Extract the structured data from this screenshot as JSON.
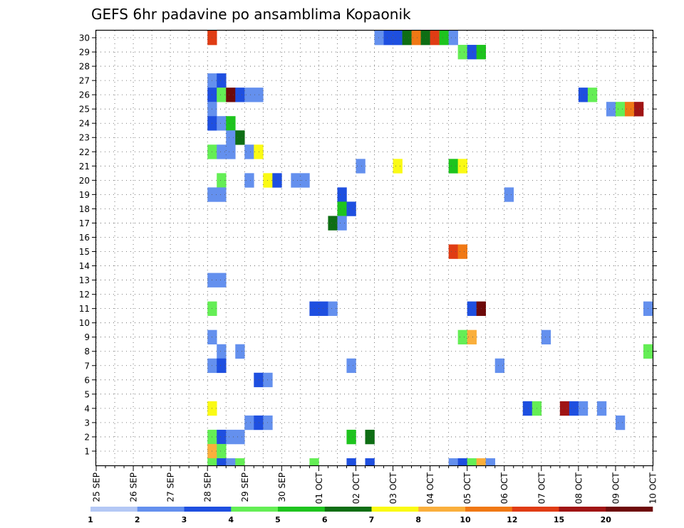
{
  "chart_data": {
    "type": "heatmap",
    "title": "GEFS 6hr padavine po ansamblima Kopaonik",
    "xlabel": "",
    "ylabel": "",
    "x_ticks": [
      "25 SEP",
      "26 SEP",
      "27 SEP",
      "28 SEP",
      "29 SEP",
      "30 SEP",
      "01 OCT",
      "02 OCT",
      "03 OCT",
      "04 OCT",
      "05 OCT",
      "06 OCT",
      "07 OCT",
      "08 OCT",
      "09 OCT",
      "10 OCT"
    ],
    "y_ticks": [
      1,
      2,
      3,
      4,
      5,
      6,
      7,
      8,
      9,
      10,
      11,
      12,
      13,
      14,
      15,
      16,
      17,
      18,
      19,
      20,
      21,
      22,
      23,
      24,
      25,
      26,
      27,
      28,
      29,
      30
    ],
    "ylim": [
      0,
      30
    ],
    "time_steps_per_day": 4,
    "grid": "dotted",
    "legend": "bottom",
    "colorbar": {
      "labels": [
        "1",
        "2",
        "3",
        "4",
        "5",
        "6",
        "7",
        "8",
        "10",
        "12",
        "15",
        "20"
      ],
      "colors": [
        "#b4c8f5",
        "#6490ee",
        "#1e4fe0",
        "#64ee55",
        "#1ec41e",
        "#0e6e14",
        "#fafa14",
        "#faaf3c",
        "#f07814",
        "#e03c14",
        "#a01414",
        "#6e0a0a"
      ]
    },
    "cells": [
      {
        "member": 30,
        "step": 12,
        "level": 9
      },
      {
        "member": 30,
        "step": 30,
        "level": 1
      },
      {
        "member": 30,
        "step": 31,
        "level": 2
      },
      {
        "member": 30,
        "step": 32,
        "level": 2
      },
      {
        "member": 30,
        "step": 33,
        "level": 5
      },
      {
        "member": 30,
        "step": 34,
        "level": 8
      },
      {
        "member": 30,
        "step": 35,
        "level": 5
      },
      {
        "member": 30,
        "step": 36,
        "level": 9
      },
      {
        "member": 30,
        "step": 37,
        "level": 4
      },
      {
        "member": 30,
        "step": 38,
        "level": 1
      },
      {
        "member": 29,
        "step": 39,
        "level": 3
      },
      {
        "member": 29,
        "step": 40,
        "level": 2
      },
      {
        "member": 29,
        "step": 41,
        "level": 4
      },
      {
        "member": 27,
        "step": 12,
        "level": 1
      },
      {
        "member": 27,
        "step": 13,
        "level": 2
      },
      {
        "member": 26,
        "step": 12,
        "level": 2
      },
      {
        "member": 26,
        "step": 13,
        "level": 3
      },
      {
        "member": 26,
        "step": 14,
        "level": 11
      },
      {
        "member": 26,
        "step": 15,
        "level": 2
      },
      {
        "member": 26,
        "step": 16,
        "level": 1
      },
      {
        "member": 26,
        "step": 17,
        "level": 1
      },
      {
        "member": 26,
        "step": 52,
        "level": 2
      },
      {
        "member": 26,
        "step": 53,
        "level": 3
      },
      {
        "member": 25,
        "step": 12,
        "level": 1
      },
      {
        "member": 25,
        "step": 55,
        "level": 1
      },
      {
        "member": 25,
        "step": 56,
        "level": 3
      },
      {
        "member": 25,
        "step": 57,
        "level": 8
      },
      {
        "member": 25,
        "step": 58,
        "level": 10
      },
      {
        "member": 24,
        "step": 12,
        "level": 2
      },
      {
        "member": 24,
        "step": 13,
        "level": 1
      },
      {
        "member": 24,
        "step": 14,
        "level": 4
      },
      {
        "member": 23,
        "step": 14,
        "level": 1
      },
      {
        "member": 23,
        "step": 15,
        "level": 5
      },
      {
        "member": 22,
        "step": 12,
        "level": 3
      },
      {
        "member": 22,
        "step": 13,
        "level": 1
      },
      {
        "member": 22,
        "step": 14,
        "level": 1
      },
      {
        "member": 22,
        "step": 16,
        "level": 1
      },
      {
        "member": 22,
        "step": 17,
        "level": 6
      },
      {
        "member": 21,
        "step": 28,
        "level": 1
      },
      {
        "member": 21,
        "step": 32,
        "level": 6
      },
      {
        "member": 21,
        "step": 38,
        "level": 4
      },
      {
        "member": 21,
        "step": 39,
        "level": 6
      },
      {
        "member": 20,
        "step": 13,
        "level": 3
      },
      {
        "member": 20,
        "step": 16,
        "level": 1
      },
      {
        "member": 20,
        "step": 18,
        "level": 6
      },
      {
        "member": 20,
        "step": 19,
        "level": 2
      },
      {
        "member": 20,
        "step": 21,
        "level": 1
      },
      {
        "member": 20,
        "step": 22,
        "level": 1
      },
      {
        "member": 19,
        "step": 12,
        "level": 1
      },
      {
        "member": 19,
        "step": 13,
        "level": 1
      },
      {
        "member": 19,
        "step": 26,
        "level": 2
      },
      {
        "member": 19,
        "step": 44,
        "level": 1
      },
      {
        "member": 18,
        "step": 26,
        "level": 4
      },
      {
        "member": 18,
        "step": 27,
        "level": 2
      },
      {
        "member": 17,
        "step": 25,
        "level": 5
      },
      {
        "member": 17,
        "step": 26,
        "level": 1
      },
      {
        "member": 15,
        "step": 38,
        "level": 9
      },
      {
        "member": 15,
        "step": 39,
        "level": 8
      },
      {
        "member": 13,
        "step": 12,
        "level": 1
      },
      {
        "member": 13,
        "step": 13,
        "level": 1
      },
      {
        "member": 11,
        "step": 12,
        "level": 3
      },
      {
        "member": 11,
        "step": 23,
        "level": 2
      },
      {
        "member": 11,
        "step": 24,
        "level": 2
      },
      {
        "member": 11,
        "step": 25,
        "level": 1
      },
      {
        "member": 11,
        "step": 40,
        "level": 2
      },
      {
        "member": 11,
        "step": 41,
        "level": 11
      },
      {
        "member": 11,
        "step": 59,
        "level": 1
      },
      {
        "member": 9,
        "step": 12,
        "level": 1
      },
      {
        "member": 9,
        "step": 39,
        "level": 3
      },
      {
        "member": 9,
        "step": 40,
        "level": 7
      },
      {
        "member": 9,
        "step": 48,
        "level": 1
      },
      {
        "member": 8,
        "step": 13,
        "level": 1
      },
      {
        "member": 8,
        "step": 15,
        "level": 1
      },
      {
        "member": 8,
        "step": 59,
        "level": 3
      },
      {
        "member": 7,
        "step": 12,
        "level": 1
      },
      {
        "member": 7,
        "step": 13,
        "level": 2
      },
      {
        "member": 7,
        "step": 27,
        "level": 1
      },
      {
        "member": 7,
        "step": 43,
        "level": 1
      },
      {
        "member": 6,
        "step": 17,
        "level": 2
      },
      {
        "member": 6,
        "step": 18,
        "level": 1
      },
      {
        "member": 4,
        "step": 12,
        "level": 6
      },
      {
        "member": 4,
        "step": 46,
        "level": 2
      },
      {
        "member": 4,
        "step": 47,
        "level": 3
      },
      {
        "member": 4,
        "step": 50,
        "level": 10
      },
      {
        "member": 4,
        "step": 51,
        "level": 2
      },
      {
        "member": 4,
        "step": 52,
        "level": 1
      },
      {
        "member": 4,
        "step": 54,
        "level": 1
      },
      {
        "member": 3,
        "step": 16,
        "level": 1
      },
      {
        "member": 3,
        "step": 17,
        "level": 2
      },
      {
        "member": 3,
        "step": 18,
        "level": 1
      },
      {
        "member": 3,
        "step": 56,
        "level": 1
      },
      {
        "member": 2,
        "step": 12,
        "level": 3
      },
      {
        "member": 2,
        "step": 13,
        "level": 2
      },
      {
        "member": 2,
        "step": 14,
        "level": 1
      },
      {
        "member": 2,
        "step": 15,
        "level": 1
      },
      {
        "member": 2,
        "step": 27,
        "level": 4
      },
      {
        "member": 2,
        "step": 29,
        "level": 5
      },
      {
        "member": 1,
        "step": 12,
        "level": 7
      },
      {
        "member": 1,
        "step": 13,
        "level": 3
      },
      {
        "member": 0,
        "step": 12,
        "level": 3
      },
      {
        "member": 0,
        "step": 13,
        "level": 2
      },
      {
        "member": 0,
        "step": 14,
        "level": 1
      },
      {
        "member": 0,
        "step": 15,
        "level": 3
      },
      {
        "member": 0,
        "step": 23,
        "level": 3
      },
      {
        "member": 0,
        "step": 27,
        "level": 2
      },
      {
        "member": 0,
        "step": 29,
        "level": 2
      },
      {
        "member": 0,
        "step": 38,
        "level": 1
      },
      {
        "member": 0,
        "step": 39,
        "level": 2
      },
      {
        "member": 0,
        "step": 40,
        "level": 3
      },
      {
        "member": 0,
        "step": 41,
        "level": 7
      },
      {
        "member": 0,
        "step": 42,
        "level": 1
      }
    ]
  }
}
